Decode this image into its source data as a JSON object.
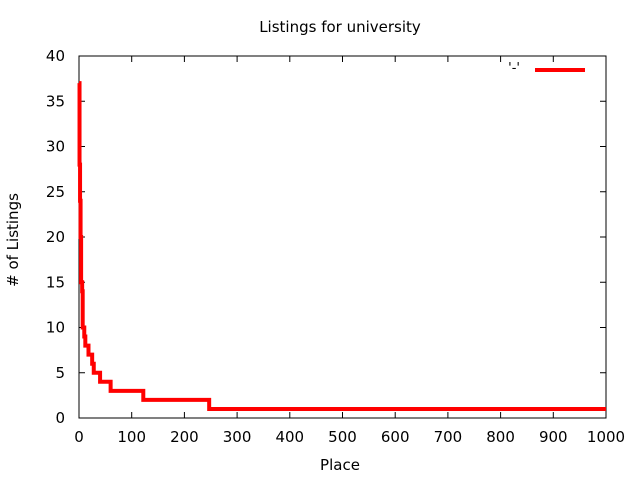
{
  "chart_data": {
    "type": "line",
    "title": "Listings for university",
    "xlabel": "Place",
    "ylabel": "# of Listings",
    "xlim": [
      0,
      1000
    ],
    "ylim": [
      0,
      40
    ],
    "x_ticks": [
      0,
      100,
      200,
      300,
      400,
      500,
      600,
      700,
      800,
      900,
      1000
    ],
    "y_ticks": [
      0,
      5,
      10,
      15,
      20,
      25,
      30,
      35,
      40
    ],
    "grid": false,
    "legend_position": "top-right",
    "series": [
      {
        "name": "'-'",
        "color": "#ff0000",
        "points": [
          [
            0,
            37
          ],
          [
            1,
            37
          ],
          [
            1,
            28
          ],
          [
            2,
            28
          ],
          [
            2,
            24
          ],
          [
            3,
            24
          ],
          [
            3,
            20
          ],
          [
            4,
            20
          ],
          [
            4,
            15
          ],
          [
            6,
            15
          ],
          [
            6,
            14
          ],
          [
            7,
            14
          ],
          [
            7,
            10
          ],
          [
            10,
            10
          ],
          [
            10,
            9
          ],
          [
            12,
            9
          ],
          [
            12,
            8
          ],
          [
            18,
            8
          ],
          [
            18,
            7
          ],
          [
            25,
            7
          ],
          [
            25,
            6
          ],
          [
            28,
            6
          ],
          [
            28,
            5
          ],
          [
            40,
            5
          ],
          [
            40,
            4
          ],
          [
            60,
            4
          ],
          [
            60,
            3
          ],
          [
            122,
            3
          ],
          [
            122,
            2
          ],
          [
            247,
            2
          ],
          [
            247,
            1
          ],
          [
            1000,
            1
          ]
        ]
      }
    ]
  }
}
